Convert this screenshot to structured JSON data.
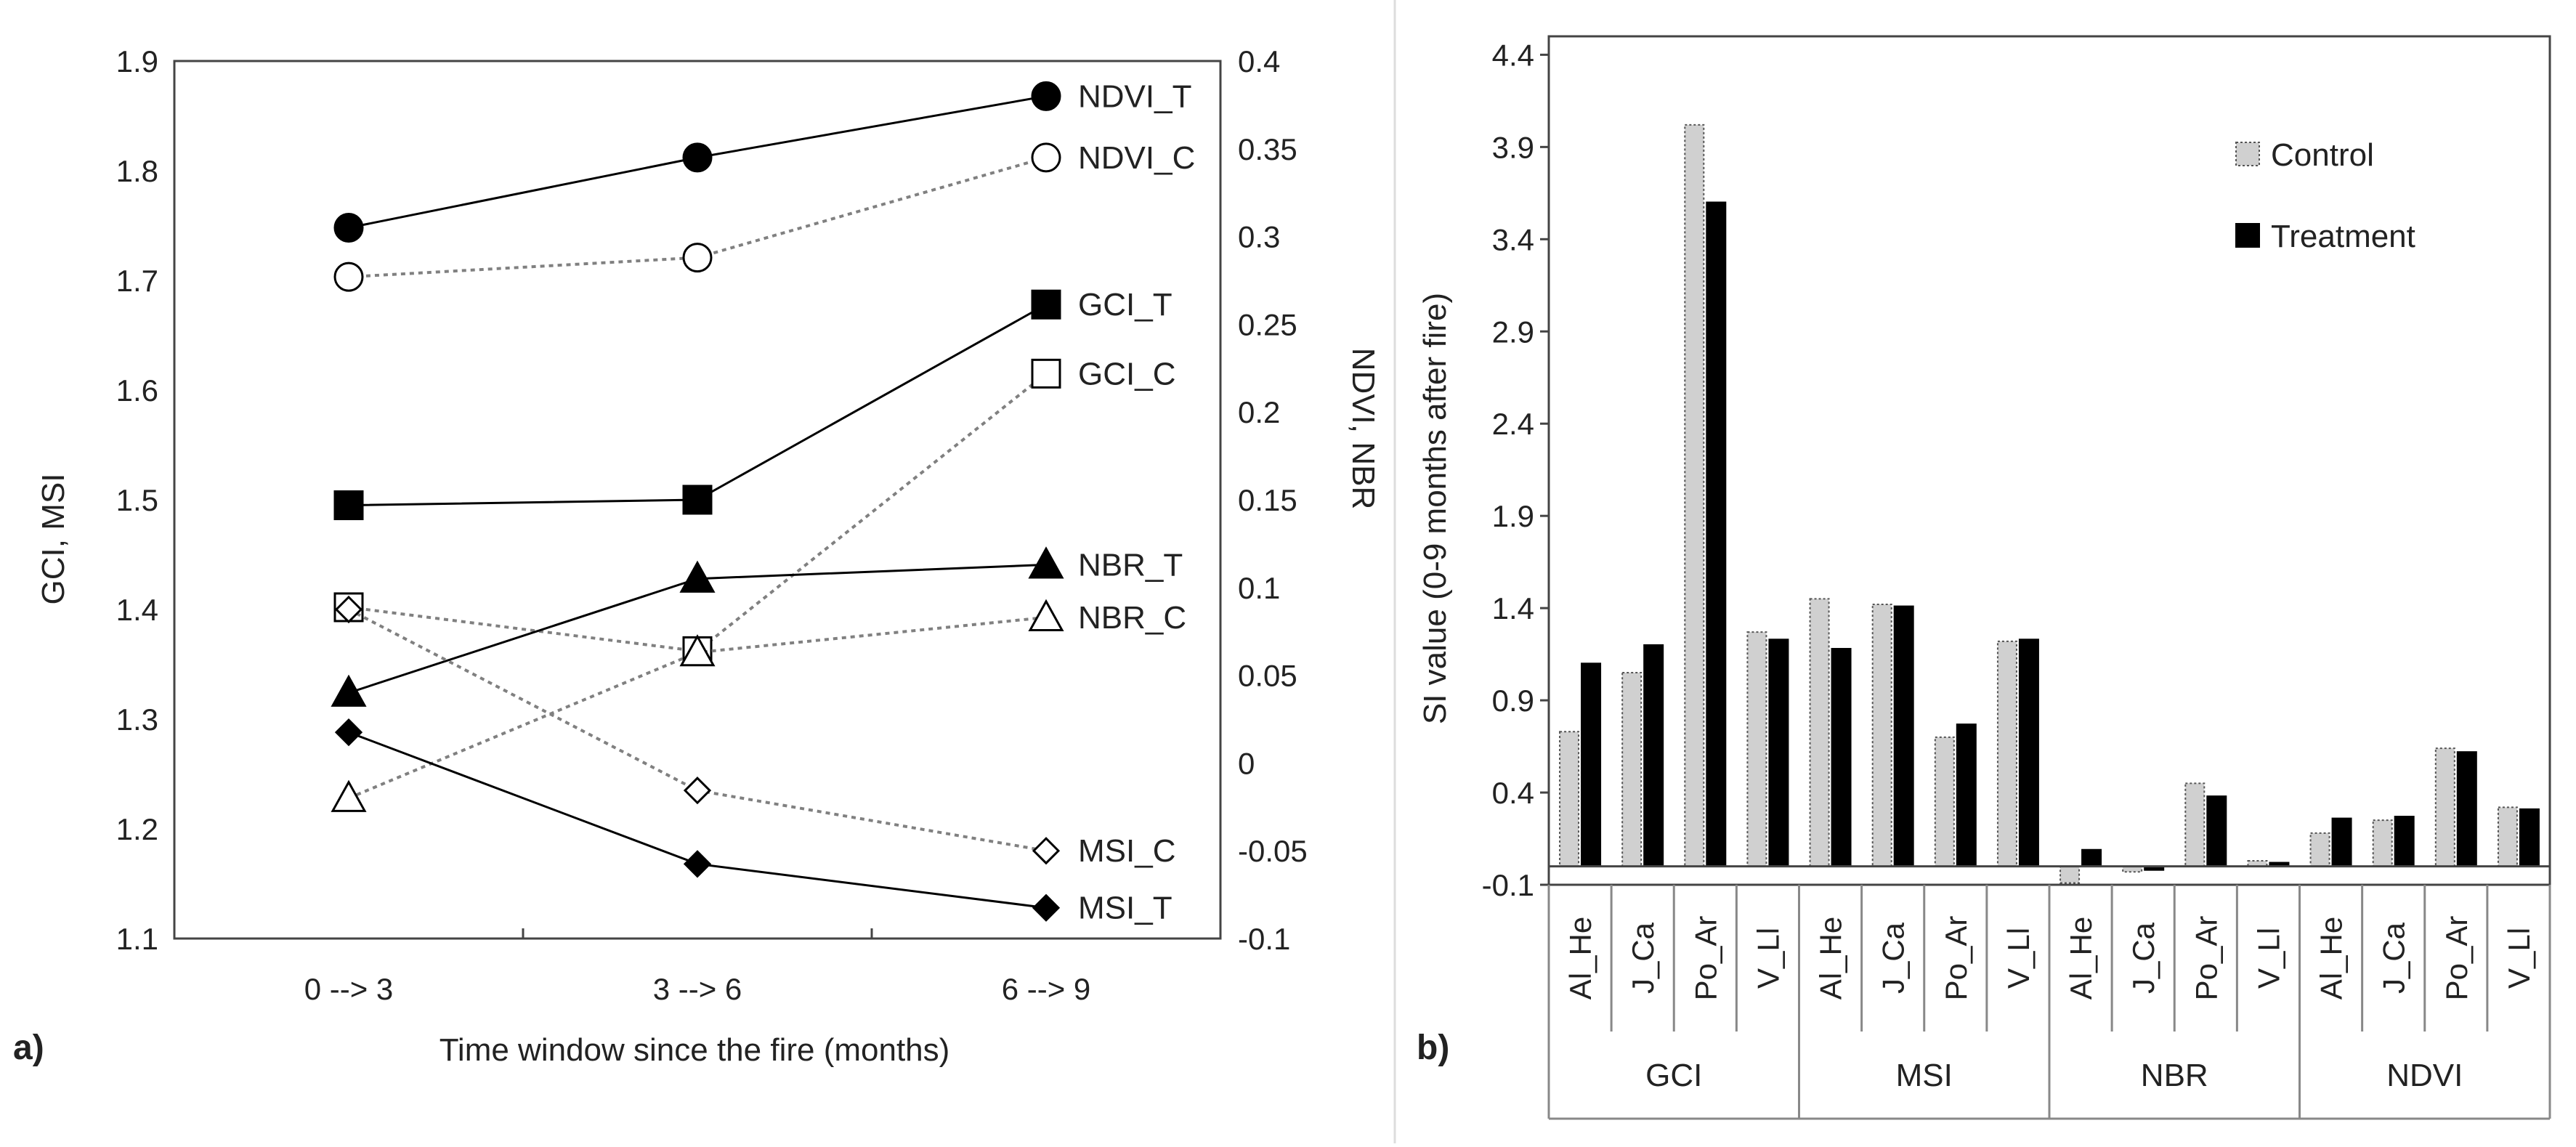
{
  "panel_labels": {
    "a": "a)",
    "b": "b)"
  },
  "chart_data": [
    {
      "type": "line",
      "panel": "a",
      "categories": [
        "0 --> 3",
        "3 --> 6",
        "6 --> 9"
      ],
      "xlabel": "Time window since the fire (months)",
      "ylabel_left": "GCI, MSI",
      "ylabel_right": "NDVI, NBR",
      "ylim_left": [
        1.1,
        1.9
      ],
      "ylim_right": [
        -0.1,
        0.4
      ],
      "yticks_left": [
        "1.1",
        "1.2",
        "1.3",
        "1.4",
        "1.5",
        "1.6",
        "1.7",
        "1.8",
        "1.9"
      ],
      "yticks_right": [
        "-0.1",
        "-0.05",
        "0",
        "0.05",
        "0.1",
        "0.15",
        "0.2",
        "0.25",
        "0.3",
        "0.35",
        "0.4"
      ],
      "series": [
        {
          "name": "NDVI_T",
          "axis": "right",
          "values": [
            0.305,
            0.345,
            0.38
          ],
          "marker": "circle",
          "filled": true,
          "dashed": false
        },
        {
          "name": "NDVI_C",
          "axis": "right",
          "values": [
            0.277,
            0.288,
            0.345
          ],
          "marker": "circle",
          "filled": false,
          "dashed": true
        },
        {
          "name": "GCI_T",
          "axis": "left",
          "values": [
            1.495,
            1.5,
            1.678
          ],
          "marker": "square",
          "filled": true,
          "dashed": false
        },
        {
          "name": "GCI_C",
          "axis": "left",
          "values": [
            1.402,
            1.362,
            1.615
          ],
          "marker": "square",
          "filled": false,
          "dashed": true
        },
        {
          "name": "NBR_T",
          "axis": "right",
          "values": [
            0.04,
            0.105,
            0.113
          ],
          "marker": "triangle",
          "filled": true,
          "dashed": false
        },
        {
          "name": "NBR_C",
          "axis": "right",
          "values": [
            -0.02,
            0.063,
            0.083
          ],
          "marker": "triangle",
          "filled": false,
          "dashed": true
        },
        {
          "name": "MSI_T",
          "axis": "left",
          "values": [
            1.288,
            1.168,
            1.128
          ],
          "marker": "diamond",
          "filled": true,
          "dashed": false
        },
        {
          "name": "MSI_C",
          "axis": "left",
          "values": [
            1.4,
            1.235,
            1.18
          ],
          "marker": "diamond",
          "filled": false,
          "dashed": true
        }
      ]
    },
    {
      "type": "bar",
      "panel": "b",
      "ylabel": "SI value (0-9 months after fire)",
      "ylim": [
        -0.1,
        4.5
      ],
      "yticks": [
        "-0.1",
        "0.4",
        "0.9",
        "1.4",
        "1.9",
        "2.4",
        "2.9",
        "3.4",
        "3.9",
        "4.4"
      ],
      "groups": [
        "GCI",
        "MSI",
        "NBR",
        "NDVI"
      ],
      "species": [
        "Al_He",
        "J_Ca",
        "Po_Ar",
        "V_Ll"
      ],
      "categories": [
        "Al_He",
        "J_Ca",
        "Po_Ar",
        "V_Ll",
        "Al_He",
        "J_Ca",
        "Po_Ar",
        "V_Ll",
        "Al_He",
        "J_Ca",
        "Po_Ar",
        "V_Ll",
        "Al_He",
        "J_Ca",
        "Po_Ar",
        "V_Ll"
      ],
      "legend_position": "top-right",
      "series": [
        {
          "name": "Control",
          "color": "#d0d0d0",
          "values": [
            0.73,
            1.05,
            4.02,
            1.27,
            1.45,
            1.42,
            0.7,
            1.22,
            -0.09,
            -0.03,
            0.45,
            0.03,
            0.18,
            0.25,
            0.64,
            0.32
          ]
        },
        {
          "name": "Treatment",
          "color": "#000000",
          "values": [
            1.1,
            1.2,
            3.6,
            1.23,
            1.18,
            1.41,
            0.77,
            1.23,
            0.09,
            -0.02,
            0.38,
            0.02,
            0.26,
            0.27,
            0.62,
            0.31
          ]
        }
      ]
    }
  ]
}
